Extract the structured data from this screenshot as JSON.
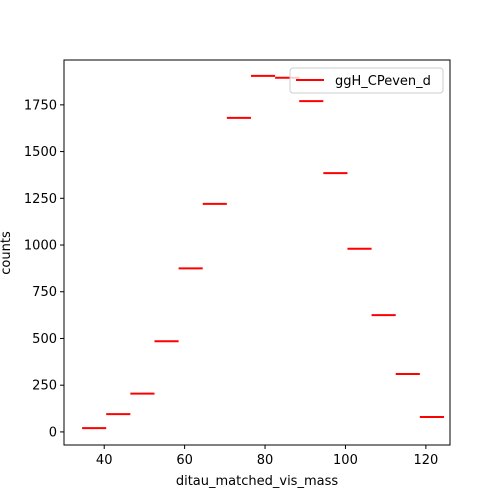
{
  "chart_data": {
    "type": "step",
    "xlabel": "ditau_matched_vis_mass",
    "ylabel": "counts",
    "xlim": [
      30,
      126
    ],
    "ylim": [
      -70,
      1990
    ],
    "xticks": [
      40,
      60,
      80,
      100,
      120
    ],
    "yticks": [
      0,
      250,
      500,
      750,
      1000,
      1250,
      1500,
      1750
    ],
    "grid": false,
    "legend_position": "top-right",
    "series": [
      {
        "name": "ggH_CPeven_d",
        "color": "#ff0000",
        "bins": [
          {
            "x0": 34.5,
            "x1": 40.5,
            "y": 20
          },
          {
            "x0": 40.5,
            "x1": 46.5,
            "y": 95
          },
          {
            "x0": 46.5,
            "x1": 52.5,
            "y": 205
          },
          {
            "x0": 52.5,
            "x1": 58.5,
            "y": 485
          },
          {
            "x0": 58.5,
            "x1": 64.5,
            "y": 875
          },
          {
            "x0": 64.5,
            "x1": 70.5,
            "y": 1220
          },
          {
            "x0": 70.5,
            "x1": 76.5,
            "y": 1680
          },
          {
            "x0": 76.5,
            "x1": 82.5,
            "y": 1905
          },
          {
            "x0": 82.5,
            "x1": 88.5,
            "y": 1895
          },
          {
            "x0": 88.5,
            "x1": 94.5,
            "y": 1770
          },
          {
            "x0": 94.5,
            "x1": 100.5,
            "y": 1385
          },
          {
            "x0": 100.5,
            "x1": 106.5,
            "y": 980
          },
          {
            "x0": 106.5,
            "x1": 112.5,
            "y": 625
          },
          {
            "x0": 112.5,
            "x1": 118.5,
            "y": 310
          },
          {
            "x0": 118.5,
            "x1": 124.5,
            "y": 80
          }
        ]
      }
    ]
  }
}
